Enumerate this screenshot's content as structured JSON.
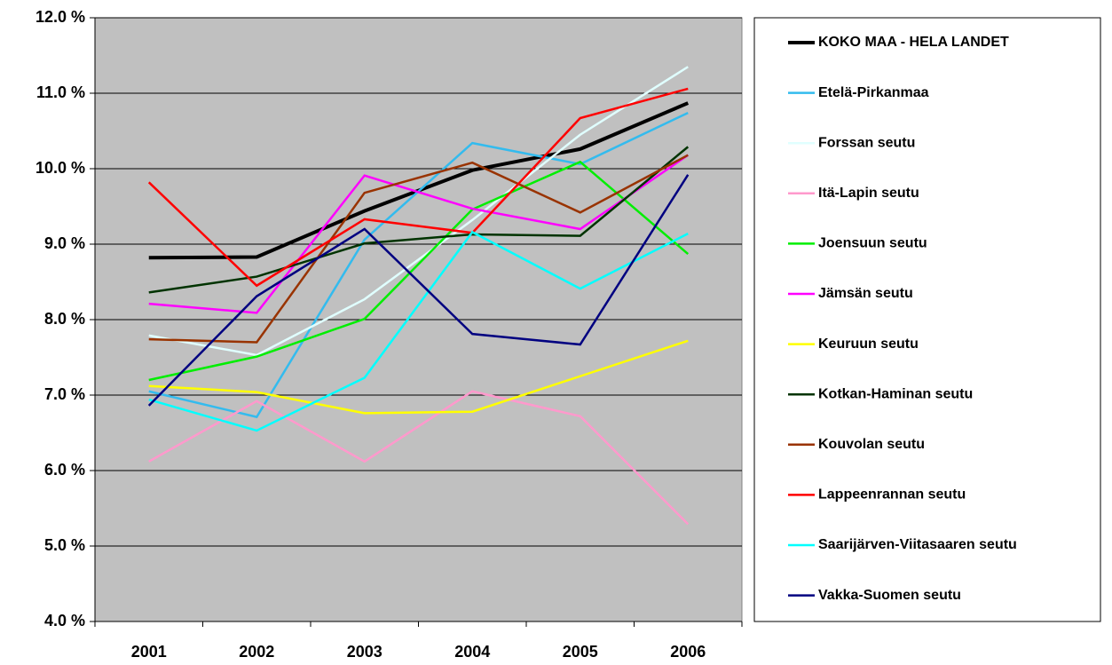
{
  "chart_data": {
    "type": "line",
    "categories": [
      "2001",
      "2002",
      "2003",
      "2004",
      "2005",
      "2006"
    ],
    "ylim": [
      4,
      12
    ],
    "yticks": [
      {
        "value": 4,
        "label": "4.0 %"
      },
      {
        "value": 5,
        "label": "5.0 %"
      },
      {
        "value": 6,
        "label": "6.0 %"
      },
      {
        "value": 7,
        "label": "7.0 %"
      },
      {
        "value": 8,
        "label": "8.0 %"
      },
      {
        "value": 9,
        "label": "9.0 %"
      },
      {
        "value": 10,
        "label": "10.0 %"
      },
      {
        "value": 11,
        "label": "11.0 %"
      },
      {
        "value": 12,
        "label": "12.0 %"
      }
    ],
    "grid": true,
    "legend": "right",
    "series": [
      {
        "name": "KOKO MAA - HELA LANDET",
        "color": "#000000",
        "values": [
          8.82,
          8.83,
          9.44,
          9.98,
          10.26,
          10.87
        ]
      },
      {
        "name": "Etelä-Pirkanmaa",
        "color": "#33bbee",
        "values": [
          7.05,
          6.71,
          9.06,
          10.34,
          10.06,
          10.74
        ]
      },
      {
        "name": "Forssan seutu",
        "color": "#e0ffff",
        "values": [
          7.79,
          7.53,
          8.27,
          9.32,
          10.45,
          11.35
        ]
      },
      {
        "name": "Itä-Lapin seutu",
        "color": "#ff99cc",
        "values": [
          6.12,
          6.92,
          6.12,
          7.05,
          6.72,
          5.29
        ]
      },
      {
        "name": "Joensuun seutu",
        "color": "#00ee00",
        "values": [
          7.2,
          7.51,
          8.01,
          9.46,
          10.09,
          8.87
        ]
      },
      {
        "name": "Jämsän seutu",
        "color": "#ff00ff",
        "values": [
          8.21,
          8.09,
          9.91,
          9.47,
          9.2,
          10.18
        ]
      },
      {
        "name": "Keuruun seutu",
        "color": "#ffff00",
        "values": [
          7.12,
          7.04,
          6.76,
          6.78,
          7.25,
          7.72
        ]
      },
      {
        "name": "Kotkan-Haminan seutu",
        "color": "#003300",
        "values": [
          8.36,
          8.57,
          9.01,
          9.13,
          9.11,
          10.29
        ]
      },
      {
        "name": "Kouvolan seutu",
        "color": "#993300",
        "values": [
          7.74,
          7.7,
          9.68,
          10.08,
          9.42,
          10.18
        ]
      },
      {
        "name": "Lappeenrannan seutu",
        "color": "#ff0000",
        "values": [
          9.82,
          8.45,
          9.33,
          9.15,
          10.67,
          11.06
        ]
      },
      {
        "name": "Saarijärven-Viitasaaren seutu",
        "color": "#00ffff",
        "values": [
          6.94,
          6.53,
          7.23,
          9.16,
          8.41,
          9.14
        ]
      },
      {
        "name": "Vakka-Suomen seutu",
        "color": "#000080",
        "values": [
          6.86,
          8.31,
          9.2,
          7.81,
          7.67,
          9.92
        ]
      }
    ]
  }
}
